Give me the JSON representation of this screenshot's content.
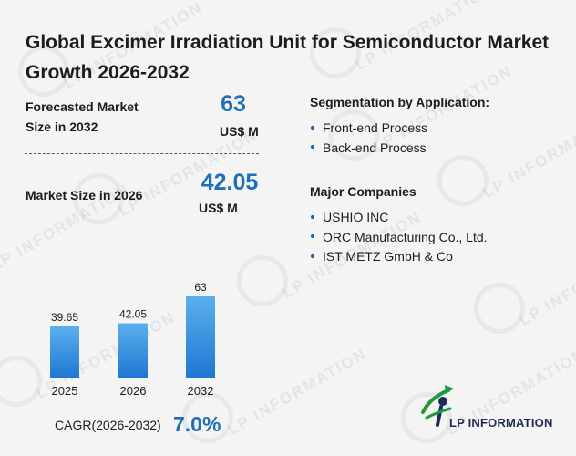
{
  "title": "Global Excimer Irradiation Unit for Semiconductor Market Growth 2026-2032",
  "forecast": {
    "label": "Forecasted Market Size in 2032",
    "value": "63",
    "unit": "US$ M"
  },
  "current": {
    "label": "Market Size in 2026",
    "value": "42.05",
    "unit": "US$ M"
  },
  "segmentation": {
    "heading": "Segmentation by Application:",
    "items": [
      "Front-end Process",
      "Back-end Process"
    ]
  },
  "companies": {
    "heading": "Major Companies",
    "items": [
      "USHIO INC",
      "ORC Manufacturing Co., Ltd.",
      "IST METZ GmbH & Co"
    ]
  },
  "cagr": {
    "label": "CAGR(2026-2032)",
    "value": "7.0%"
  },
  "brand": {
    "name": "LP INFORMATION",
    "watermark": "LP INFORMATION"
  },
  "colors": {
    "accent": "#1f6fb5",
    "bar_top": "#5ab0ee",
    "bar_bottom": "#1f78d1",
    "logo_green": "#1e9a3a",
    "logo_navy": "#1c2b5a"
  },
  "chart_data": {
    "type": "bar",
    "categories": [
      "2025",
      "2026",
      "2032"
    ],
    "values": [
      39.65,
      42.05,
      63
    ],
    "value_labels": [
      "39.65",
      "42.05",
      "63"
    ],
    "title": "",
    "xlabel": "",
    "ylabel": "",
    "ylim": [
      0,
      63
    ],
    "grid": false,
    "legend": "none"
  }
}
